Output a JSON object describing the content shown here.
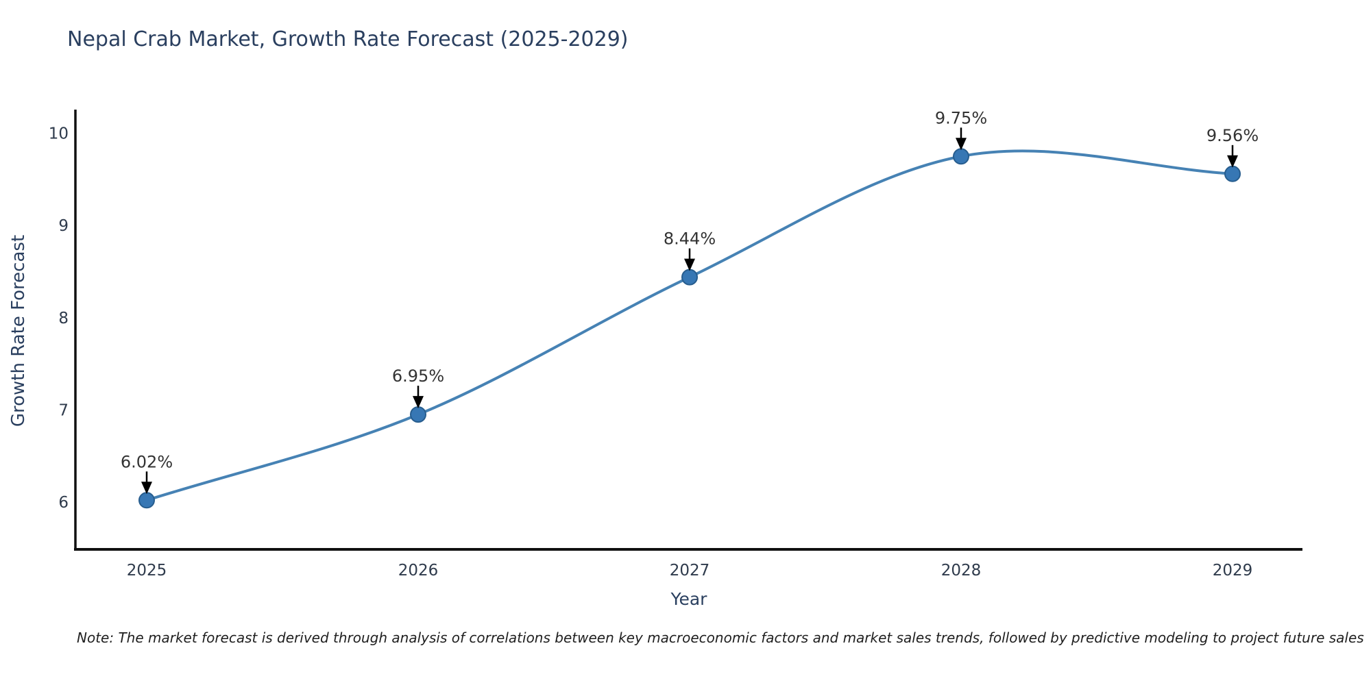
{
  "note": "Note: The market forecast is derived through analysis of correlations between key macroeconomic factors and market sales trends, followed by predictive modeling to project future sales",
  "chart_data": {
    "type": "line",
    "title": "Nepal Crab Market, Growth Rate Forecast (2025-2029)",
    "xlabel": "Year",
    "ylabel": "Growth Rate Forecast",
    "x": [
      2025,
      2026,
      2027,
      2028,
      2029
    ],
    "values": [
      6.02,
      6.95,
      8.44,
      9.75,
      9.56
    ],
    "point_labels": [
      "6.02%",
      "6.95%",
      "8.44%",
      "9.75%",
      "9.56%"
    ],
    "yticks": [
      6,
      7,
      8,
      9,
      10
    ],
    "ylim": [
      5.5,
      10.3
    ],
    "grid": false,
    "legend": false,
    "smooth_curve": true,
    "colors": {
      "line": "#4682b4",
      "marker_fill": "#3777b4",
      "marker_edge": "#275d8e",
      "axis_line": "#111111",
      "tick_text": "#2f3b4c",
      "annotation_text": "#333333",
      "annotation_arrow": "#000000"
    }
  }
}
